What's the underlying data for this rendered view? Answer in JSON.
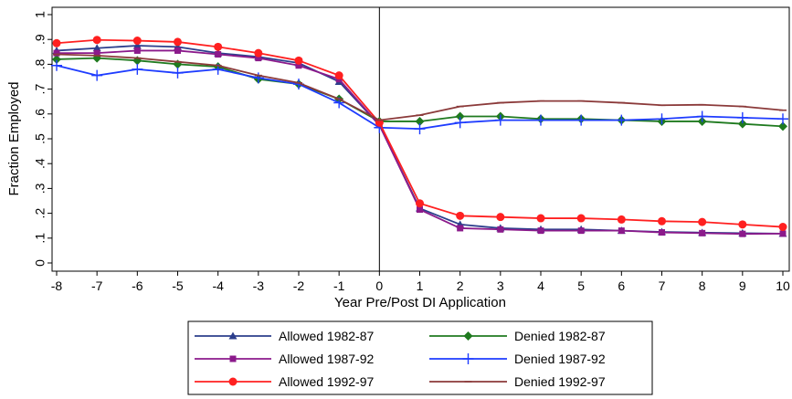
{
  "chart_data": {
    "type": "line",
    "title": "",
    "xlabel": "Year Pre/Post DI Application",
    "ylabel": "Fraction Employed",
    "xlim": [
      -8,
      10
    ],
    "ylim": [
      0,
      1
    ],
    "x": [
      -8,
      -7,
      -6,
      -5,
      -4,
      -3,
      -2,
      -1,
      0,
      1,
      2,
      3,
      4,
      5,
      6,
      7,
      8,
      9,
      10
    ],
    "x_tick_labels": [
      "-8",
      "-7",
      "-6",
      "-5",
      "-4",
      "-3",
      "-2",
      "-1",
      "0",
      "1",
      "2",
      "3",
      "4",
      "5",
      "6",
      "7",
      "8",
      "9",
      "10"
    ],
    "y_ticks": [
      0,
      0.1,
      0.2,
      0.3,
      0.4,
      0.5,
      0.6,
      0.7,
      0.8,
      0.9,
      1
    ],
    "y_tick_labels": [
      "0",
      ".1",
      ".2",
      ".3",
      ".4",
      ".5",
      ".6",
      ".7",
      ".8",
      ".9",
      "1"
    ],
    "reference_line_x": 0,
    "grid": false,
    "legend_position": "bottom",
    "series": [
      {
        "name": "Allowed 1982-87",
        "color": "#2c3e8c",
        "marker": "triangle",
        "values": [
          0.855,
          0.865,
          0.875,
          0.87,
          0.845,
          0.83,
          0.805,
          0.73,
          0.555,
          0.22,
          0.155,
          0.14,
          0.135,
          0.135,
          0.13,
          0.125,
          0.122,
          0.12,
          0.118
        ]
      },
      {
        "name": "Denied 1982-87",
        "color": "#1f7a1f",
        "marker": "diamond",
        "values": [
          0.82,
          0.825,
          0.815,
          0.8,
          0.79,
          0.74,
          0.72,
          0.66,
          0.57,
          0.57,
          0.59,
          0.59,
          0.58,
          0.58,
          0.575,
          0.57,
          0.57,
          0.56,
          0.55
        ]
      },
      {
        "name": "Allowed 1987-92",
        "color": "#8b1a8b",
        "marker": "square",
        "values": [
          0.845,
          0.845,
          0.855,
          0.855,
          0.84,
          0.825,
          0.795,
          0.74,
          0.555,
          0.215,
          0.14,
          0.135,
          0.13,
          0.13,
          0.13,
          0.123,
          0.12,
          0.117,
          0.118
        ]
      },
      {
        "name": "Denied 1987-92",
        "color": "#1e3cff",
        "marker": "plus",
        "values": [
          0.795,
          0.755,
          0.78,
          0.765,
          0.78,
          0.745,
          0.72,
          0.645,
          0.545,
          0.54,
          0.565,
          0.575,
          0.575,
          0.575,
          0.575,
          0.58,
          0.59,
          0.585,
          0.58
        ]
      },
      {
        "name": "Allowed 1992-97",
        "color": "#ff2020",
        "marker": "circle",
        "values": [
          0.885,
          0.898,
          0.895,
          0.89,
          0.87,
          0.845,
          0.815,
          0.755,
          0.565,
          0.24,
          0.19,
          0.185,
          0.18,
          0.18,
          0.175,
          0.168,
          0.165,
          0.155,
          0.145
        ]
      },
      {
        "name": "Denied 1992-97",
        "color": "#8b3a3a",
        "marker": "dash",
        "values": [
          0.84,
          0.835,
          0.825,
          0.81,
          0.795,
          0.755,
          0.725,
          0.66,
          0.575,
          0.595,
          0.63,
          0.645,
          0.652,
          0.652,
          0.645,
          0.635,
          0.637,
          0.63,
          0.615
        ]
      }
    ]
  }
}
